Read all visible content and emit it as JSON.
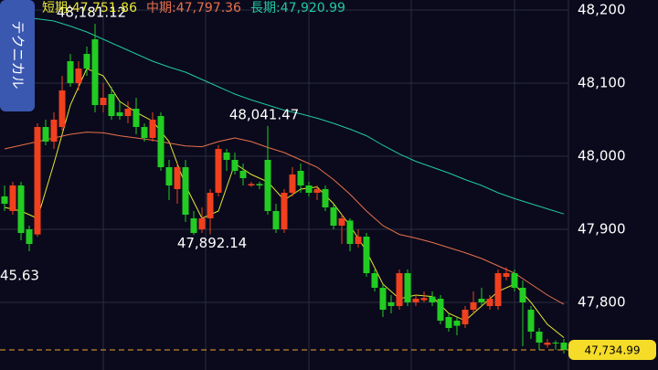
{
  "chart_data": {
    "type": "candlestick",
    "tab_label": "テクニカル",
    "ylim": [
      47707.5,
      48213.75
    ],
    "yticks": [
      {
        "value": 48200,
        "label": "48,200"
      },
      {
        "value": 48100,
        "label": "48,100"
      },
      {
        "value": 48000,
        "label": "48,000"
      },
      {
        "value": 47900,
        "label": "47,900"
      },
      {
        "value": 47800,
        "label": "47,800"
      }
    ],
    "grid": true,
    "up_color": "#f0401e",
    "down_color": "#22cc22",
    "open": [
      47945,
      47925,
      47960,
      47900,
      47893,
      48040,
      48020,
      48040,
      48130,
      48100,
      48140,
      48160,
      48070,
      48085,
      48060,
      48055,
      48065,
      48040,
      48025,
      48055,
      47985,
      47955,
      47985,
      47915,
      47900,
      47915,
      47950,
      48005,
      47995,
      47980,
      47960,
      47962,
      47995,
      47925,
      47900,
      47950,
      47980,
      47960,
      47950,
      47955,
      47930,
      47905,
      47912,
      47880,
      47890,
      47840,
      47820,
      47800,
      47795,
      47840,
      47800,
      47803,
      47808,
      47805,
      47780,
      47775,
      47770,
      47790,
      47805,
      47795,
      47795,
      47835,
      47840,
      47820,
      47790,
      47760,
      47742,
      47745,
      47745
    ],
    "high": [
      47960,
      47965,
      47965,
      47905,
      48045,
      48050,
      48060,
      48110,
      48140,
      48130,
      48150,
      48181.12,
      48100,
      48095,
      48075,
      48075,
      48080,
      48045,
      48060,
      48060,
      47995,
      47990,
      47995,
      47925,
      47930,
      47955,
      48015,
      48010,
      48005,
      47990,
      47965,
      47965,
      48041.47,
      47935,
      47955,
      47985,
      47990,
      47965,
      47960,
      47960,
      47935,
      47920,
      47915,
      47900,
      47895,
      47845,
      47825,
      47810,
      47845,
      47845,
      47810,
      47815,
      47815,
      47810,
      47785,
      47780,
      47795,
      47815,
      47820,
      47810,
      47845,
      47848,
      47845,
      47830,
      47795,
      47765,
      47750,
      47748,
      47750
    ],
    "low": [
      47925,
      47920,
      47885,
      47870,
      47890,
      48015,
      48010,
      48035,
      48095,
      48090,
      48110,
      48060,
      48060,
      48050,
      48050,
      48045,
      48030,
      48020,
      48020,
      47980,
      47940,
      47935,
      47910,
      47892.14,
      47895,
      47893,
      47945,
      47980,
      47975,
      47960,
      47958,
      47955,
      47920,
      47895,
      47895,
      47945,
      47950,
      47945,
      47940,
      47925,
      47900,
      47880,
      47870,
      47875,
      47835,
      47815,
      47780,
      47785,
      47790,
      47795,
      47795,
      47800,
      47795,
      47770,
      47760,
      47755,
      47765,
      47785,
      47795,
      47790,
      47790,
      47830,
      47815,
      47740,
      47750,
      47735,
      47738,
      47735,
      47730
    ],
    "close": [
      47935,
      47960,
      47895,
      47880,
      48040,
      48020,
      48050,
      48090,
      48100,
      48120,
      48120,
      48070,
      48080,
      48055,
      48055,
      48065,
      48040,
      48025,
      48050,
      47985,
      47960,
      47985,
      47920,
      47895,
      47915,
      47950,
      48010,
      47995,
      47980,
      47970,
      47962,
      47960,
      47925,
      47900,
      47950,
      47975,
      47960,
      47950,
      47955,
      47930,
      47905,
      47915,
      47880,
      47890,
      47840,
      47820,
      47790,
      47795,
      47840,
      47800,
      47805,
      47806,
      47800,
      47775,
      47765,
      47768,
      47790,
      47800,
      47800,
      47805,
      47840,
      47840,
      47820,
      47800,
      47760,
      47745,
      47745,
      47744,
      47734.99
    ],
    "series": [
      {
        "name": "短期",
        "value_label": "47,751.86",
        "color": "#e6e632",
        "x": [
          0,
          2,
          4,
          6,
          8,
          10,
          12,
          14,
          16,
          18,
          20,
          22,
          24,
          26,
          28,
          30,
          32,
          34,
          36,
          38,
          40,
          42,
          44,
          46,
          48,
          50,
          52,
          54,
          56,
          58,
          60,
          62,
          64,
          66,
          68
        ],
        "values": [
          47930,
          47925,
          47915,
          47990,
          48070,
          48120,
          48110,
          48075,
          48060,
          48048,
          48020,
          47960,
          47915,
          47925,
          47990,
          47975,
          47965,
          47940,
          47955,
          47958,
          47935,
          47905,
          47870,
          47825,
          47805,
          47810,
          47808,
          47785,
          47775,
          47795,
          47815,
          47825,
          47800,
          47770,
          47751.86
        ]
      },
      {
        "name": "中期",
        "value_label": "47,797.36",
        "color": "#e8704a",
        "x": [
          0,
          2,
          4,
          6,
          8,
          10,
          12,
          14,
          16,
          18,
          20,
          22,
          24,
          26,
          28,
          30,
          32,
          34,
          36,
          38,
          40,
          42,
          44,
          46,
          48,
          50,
          52,
          54,
          56,
          58,
          60,
          62,
          64,
          66,
          68
        ],
        "values": [
          48010,
          48015,
          48020,
          48025,
          48030,
          48033,
          48032,
          48028,
          48025,
          48022,
          48018,
          48014,
          48013,
          48020,
          48025,
          48020,
          48012,
          48005,
          47995,
          47985,
          47968,
          47948,
          47925,
          47905,
          47893,
          47888,
          47882,
          47875,
          47868,
          47860,
          47850,
          47840,
          47825,
          47810,
          47797.36
        ]
      },
      {
        "name": "長期",
        "value_label": "47,920.99",
        "color": "#22c8a0",
        "x": [
          0,
          2,
          4,
          6,
          8,
          10,
          12,
          14,
          16,
          18,
          20,
          22,
          24,
          26,
          28,
          30,
          32,
          34,
          36,
          38,
          40,
          42,
          44,
          46,
          48,
          50,
          52,
          54,
          56,
          58,
          60,
          62,
          64,
          66,
          68
        ],
        "values": [
          48195,
          48190,
          48188,
          48185,
          48178,
          48170,
          48160,
          48150,
          48140,
          48130,
          48122,
          48115,
          48105,
          48095,
          48085,
          48077,
          48070,
          48063,
          48058,
          48052,
          48045,
          48037,
          48028,
          48015,
          48003,
          47993,
          47985,
          47977,
          47968,
          47960,
          47950,
          47942,
          47935,
          47928,
          47920.99
        ]
      }
    ],
    "annotations": [
      {
        "value": 48181.12,
        "label": "48,181.12"
      },
      {
        "value": 48041.47,
        "label": "48,041.47"
      },
      {
        "value": 47892.14,
        "label": "47,892.14"
      }
    ],
    "clipped_label": "45.63",
    "last_price": {
      "value": 47734.99,
      "label": "47,734.99"
    }
  }
}
